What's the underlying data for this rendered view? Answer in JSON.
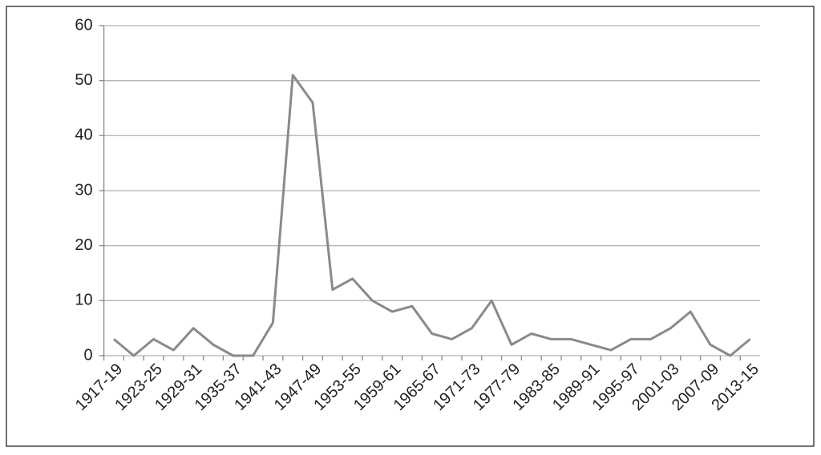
{
  "chart_data": {
    "type": "line",
    "categories": [
      "1917-19",
      null,
      "1923-25",
      null,
      "1929-31",
      null,
      "1935-37",
      null,
      "1941-43",
      null,
      "1947-49",
      null,
      "1953-55",
      null,
      "1959-61",
      null,
      "1965-67",
      null,
      "1971-73",
      null,
      "1977-79",
      null,
      "1983-85",
      null,
      "1989-91",
      null,
      "1995-97",
      null,
      "2001-03",
      null,
      "2007-09",
      null,
      "2013-15"
    ],
    "values": [
      3,
      0,
      3,
      1,
      5,
      2,
      0,
      0,
      6,
      51,
      46,
      12,
      14,
      10,
      8,
      9,
      4,
      3,
      5,
      10,
      2,
      4,
      3,
      3,
      2,
      1,
      3,
      3,
      5,
      8,
      2,
      0,
      3
    ],
    "color": "#8a8a8a",
    "ylim": [
      0,
      60
    ],
    "yticks": [
      0,
      10,
      20,
      30,
      40,
      50,
      60
    ],
    "grid": true
  }
}
